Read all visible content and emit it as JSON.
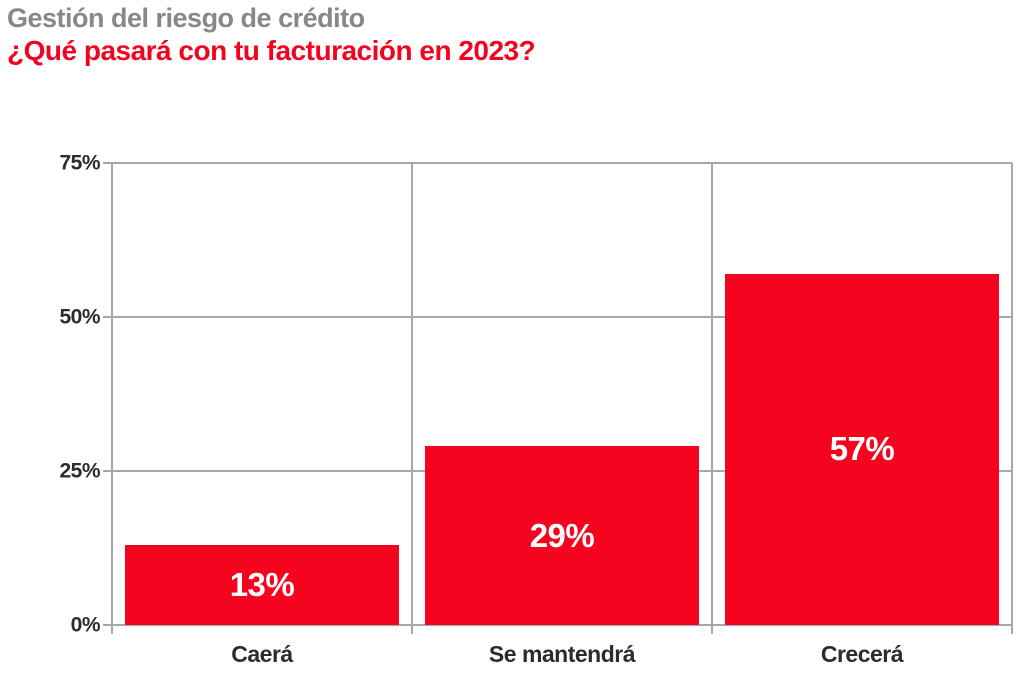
{
  "header": {
    "title": "Gestión del riesgo de crédito",
    "subtitle": "¿Qué pasará con tu facturación en 2023?"
  },
  "chart_data": {
    "type": "bar",
    "title": "Gestión del riesgo de crédito",
    "subtitle": "¿Qué pasará con tu facturación en 2023?",
    "categories": [
      "Caerá",
      "Se mantendrá",
      "Crecerá"
    ],
    "values": [
      13,
      29,
      57
    ],
    "value_labels": [
      "13%",
      "29%",
      "57%"
    ],
    "xlabel": "",
    "ylabel": "",
    "ylim": [
      0,
      75
    ],
    "yticks": [
      0,
      25,
      50,
      75
    ],
    "ytick_labels": [
      "0%",
      "25%",
      "50%",
      "75%"
    ],
    "grid": true,
    "legend": "none",
    "bar_color": "#f50420",
    "value_label_color": "#ffffff",
    "grid_color": "#a7a8aa",
    "axis_text_color": "#2b2c2e",
    "title_color": "#87888a",
    "subtitle_color": "#f20420"
  }
}
